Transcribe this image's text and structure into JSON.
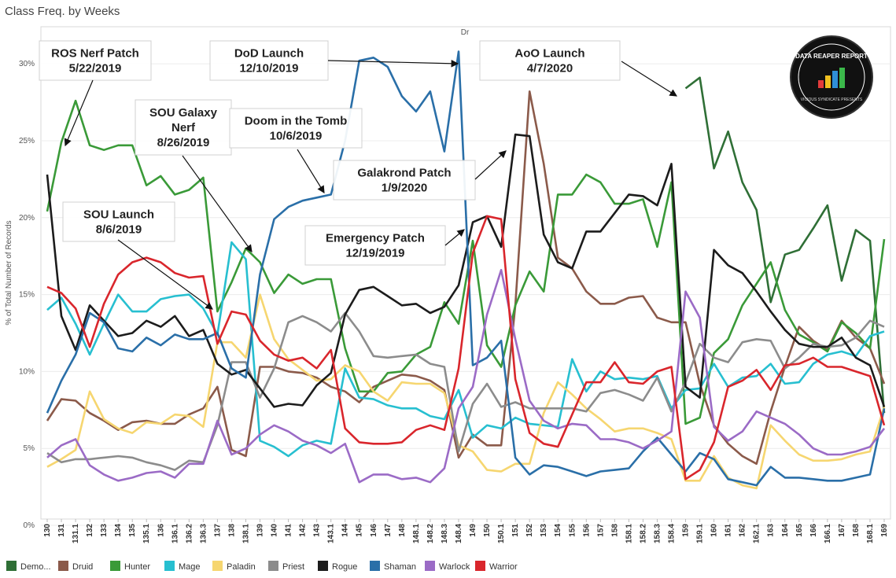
{
  "header": {
    "title": "Class Freq. by Weeks"
  },
  "chart_data": {
    "type": "line",
    "column_header": "Dr",
    "ylabel": "% of Total Number of Records",
    "ylim": [
      0,
      32
    ],
    "yticks": [
      0,
      5,
      10,
      15,
      20,
      25,
      30
    ],
    "ytick_labels": [
      "0%",
      "5%",
      "10%",
      "15%",
      "20%",
      "25%",
      "30%"
    ],
    "grid": true,
    "legend_position": "bottom",
    "categories": [
      "130",
      "131",
      "131.1",
      "132",
      "133",
      "134",
      "135",
      "135.1",
      "136",
      "136.1",
      "136.2",
      "136.3",
      "137",
      "138",
      "138.1",
      "139",
      "140",
      "141",
      "142",
      "143",
      "143.1",
      "144",
      "145",
      "146",
      "147",
      "148",
      "148.1",
      "148.2",
      "148.3",
      "148.4",
      "149",
      "150",
      "150.1",
      "151",
      "152",
      "153",
      "154",
      "155",
      "156",
      "157",
      "158",
      "158.1",
      "158.2",
      "158.3",
      "158.4",
      "159",
      "159.1",
      "160",
      "161",
      "162",
      "162.1",
      "163",
      "164",
      "165",
      "166",
      "166.1",
      "167",
      "168",
      "168.1",
      "169"
    ],
    "series": [
      {
        "name": "Demo...",
        "color": "#2f6f36",
        "values": [
          null,
          null,
          null,
          null,
          null,
          null,
          null,
          null,
          null,
          null,
          null,
          null,
          null,
          null,
          null,
          null,
          null,
          null,
          null,
          null,
          null,
          null,
          null,
          null,
          null,
          null,
          null,
          null,
          null,
          null,
          null,
          null,
          null,
          null,
          null,
          null,
          null,
          null,
          null,
          null,
          null,
          null,
          null,
          null,
          null,
          28.4,
          29.1,
          23.2,
          25.6,
          22.3,
          20.5,
          14.5,
          17.6,
          17.9,
          19.3,
          20.8,
          15.9,
          19.2,
          18.5,
          7.3
        ]
      },
      {
        "name": "Druid",
        "color": "#8b5a4a",
        "values": [
          6.8,
          8.2,
          8.1,
          7.3,
          6.8,
          6.2,
          6.7,
          6.8,
          6.6,
          6.6,
          7.2,
          7.6,
          9.0,
          4.9,
          4.5,
          10.3,
          10.3,
          10.0,
          9.9,
          9.6,
          9.0,
          8.7,
          8.0,
          9.0,
          9.4,
          9.8,
          9.7,
          9.4,
          8.8,
          4.4,
          5.9,
          5.2,
          5.2,
          14.3,
          28.2,
          23.5,
          17.4,
          16.7,
          15.2,
          14.4,
          14.4,
          14.8,
          14.9,
          13.5,
          13.2,
          13.2,
          9.2,
          6.5,
          5.3,
          4.5,
          4.0,
          7.4,
          10.3,
          12.9,
          12.0,
          11.4,
          13.3,
          12.2,
          11.5,
          9.2
        ]
      },
      {
        "name": "Hunter",
        "color": "#3a9a38",
        "values": [
          20.4,
          24.9,
          27.6,
          24.7,
          24.4,
          24.7,
          24.7,
          22.1,
          22.7,
          21.5,
          21.8,
          22.6,
          13.9,
          15.8,
          18.0,
          17.1,
          15.1,
          16.3,
          15.7,
          16.0,
          16.0,
          11.5,
          8.7,
          8.7,
          9.9,
          10.0,
          11.1,
          11.6,
          14.5,
          13.1,
          18.5,
          11.7,
          10.3,
          14.3,
          16.5,
          15.2,
          21.5,
          21.5,
          22.8,
          22.3,
          20.9,
          20.9,
          21.2,
          18.1,
          22.3,
          6.6,
          7.0,
          11.2,
          12.1,
          14.3,
          15.7,
          17.1,
          14.0,
          12.4,
          11.9,
          11.3,
          13.2,
          12.5,
          11.5,
          18.6
        ]
      },
      {
        "name": "Mage",
        "color": "#27bfd0",
        "values": [
          14.0,
          14.8,
          13.1,
          11.1,
          13.1,
          15.0,
          13.9,
          13.9,
          14.7,
          14.9,
          15.0,
          14.1,
          12.4,
          18.4,
          17.3,
          5.5,
          5.1,
          4.5,
          5.2,
          5.5,
          5.3,
          10.2,
          8.3,
          8.2,
          7.8,
          7.6,
          7.6,
          7.1,
          6.9,
          8.8,
          5.7,
          6.5,
          6.3,
          7.0,
          6.6,
          6.5,
          6.4,
          10.8,
          8.7,
          10.0,
          9.5,
          9.6,
          9.5,
          9.7,
          7.6,
          8.8,
          8.9,
          10.5,
          9.0,
          9.6,
          9.7,
          10.5,
          9.2,
          9.3,
          10.5,
          11.1,
          11.3,
          11.0,
          12.3,
          12.6
        ]
      },
      {
        "name": "Paladin",
        "color": "#f6d670",
        "values": [
          3.8,
          4.3,
          4.9,
          8.7,
          6.9,
          6.3,
          6.0,
          6.7,
          6.6,
          7.2,
          7.1,
          6.4,
          11.9,
          11.9,
          10.9,
          15.0,
          12.1,
          10.8,
          10.1,
          9.4,
          9.5,
          10.4,
          10.0,
          8.7,
          8.1,
          9.3,
          9.2,
          9.2,
          8.6,
          5.2,
          4.8,
          3.6,
          3.5,
          4.0,
          4.0,
          7.3,
          9.3,
          8.5,
          7.6,
          6.9,
          6.1,
          6.3,
          6.3,
          6.0,
          5.6,
          2.9,
          2.9,
          4.5,
          3.1,
          2.6,
          2.4,
          6.5,
          5.5,
          4.6,
          4.2,
          4.2,
          4.3,
          4.6,
          4.8,
          7.7
        ]
      },
      {
        "name": "Priest",
        "color": "#8c8c8c",
        "values": [
          4.7,
          4.1,
          4.3,
          4.3,
          4.4,
          4.5,
          4.4,
          4.1,
          3.9,
          3.6,
          4.2,
          4.1,
          6.5,
          10.6,
          10.6,
          8.3,
          10.2,
          13.2,
          13.6,
          13.2,
          12.6,
          13.8,
          12.6,
          11.0,
          10.9,
          11.0,
          11.1,
          10.5,
          10.3,
          4.8,
          7.9,
          9.2,
          7.7,
          8.0,
          7.6,
          7.6,
          7.6,
          7.6,
          7.4,
          8.6,
          8.8,
          8.5,
          8.1,
          9.6,
          7.4,
          9.3,
          11.8,
          10.9,
          10.6,
          11.9,
          12.1,
          12.0,
          10.2,
          10.9,
          11.8,
          11.6,
          11.7,
          12.2,
          13.3,
          12.9
        ]
      },
      {
        "name": "Rogue",
        "color": "#1c1c1c",
        "values": [
          22.8,
          13.6,
          11.4,
          14.3,
          13.3,
          12.3,
          12.5,
          13.3,
          12.9,
          13.6,
          12.3,
          12.7,
          10.5,
          9.8,
          10.1,
          8.9,
          7.7,
          7.9,
          7.8,
          9.1,
          9.9,
          13.7,
          15.3,
          15.5,
          14.9,
          14.3,
          14.4,
          13.8,
          14.2,
          15.6,
          19.7,
          20.1,
          18.1,
          25.4,
          25.3,
          18.9,
          17.1,
          16.7,
          19.1,
          19.1,
          20.3,
          21.5,
          21.4,
          20.8,
          23.5,
          9.0,
          8.3,
          17.9,
          16.9,
          16.4,
          15.2,
          13.9,
          12.7,
          11.8,
          11.6,
          11.6,
          12.2,
          10.9,
          10.4,
          7.7
        ]
      },
      {
        "name": "Shaman",
        "color": "#2a6fa8",
        "values": [
          7.3,
          9.4,
          11.1,
          13.8,
          13.2,
          11.5,
          11.3,
          12.2,
          11.7,
          12.4,
          12.1,
          12.1,
          12.5,
          10.2,
          9.6,
          16.3,
          19.9,
          20.7,
          21.1,
          21.3,
          21.5,
          25.0,
          30.2,
          30.4,
          29.8,
          27.9,
          26.9,
          28.2,
          24.3,
          30.8,
          10.4,
          10.9,
          12.0,
          4.4,
          3.3,
          3.9,
          3.8,
          3.5,
          3.2,
          3.5,
          3.6,
          3.7,
          4.8,
          5.7,
          4.6,
          3.5,
          4.7,
          4.3,
          3.0,
          2.8,
          2.6,
          3.8,
          3.1,
          3.1,
          3.0,
          2.9,
          2.9,
          3.1,
          3.3,
          7.6
        ]
      },
      {
        "name": "Warlock",
        "color": "#9b6bc6",
        "values": [
          4.4,
          5.2,
          5.6,
          3.9,
          3.3,
          2.9,
          3.1,
          3.4,
          3.5,
          3.1,
          4.0,
          4.0,
          6.8,
          4.6,
          5.0,
          5.9,
          6.5,
          6.1,
          5.5,
          5.2,
          4.7,
          5.3,
          2.8,
          3.3,
          3.3,
          3.0,
          3.1,
          2.8,
          3.7,
          7.6,
          9.0,
          13.7,
          16.6,
          12.1,
          8.1,
          6.8,
          6.3,
          6.6,
          6.5,
          5.6,
          5.6,
          5.4,
          5.0,
          5.5,
          6.1,
          15.2,
          13.5,
          6.4,
          5.5,
          6.1,
          7.4,
          7.0,
          6.6,
          5.9,
          5.0,
          4.6,
          4.6,
          4.8,
          5.1,
          6.3
        ]
      },
      {
        "name": "Warrior",
        "color": "#d9262c",
        "values": [
          15.5,
          15.1,
          14.1,
          11.6,
          14.4,
          16.3,
          17.1,
          17.4,
          17.1,
          16.4,
          16.1,
          16.2,
          11.8,
          13.9,
          13.7,
          12.0,
          11.1,
          10.7,
          10.9,
          10.2,
          11.4,
          6.3,
          5.4,
          5.3,
          5.3,
          5.4,
          6.2,
          6.5,
          6.2,
          10.2,
          17.7,
          20.1,
          19.9,
          9.5,
          6.0,
          5.3,
          5.1,
          7.2,
          9.3,
          9.3,
          10.6,
          9.3,
          9.2,
          10.0,
          10.3,
          3.0,
          3.6,
          5.4,
          9.0,
          9.4,
          10.1,
          8.8,
          10.4,
          10.5,
          10.9,
          10.3,
          10.3,
          10.0,
          9.7,
          6.5
        ]
      }
    ],
    "annotations": [
      {
        "id": "ros-nerf",
        "lines": [
          "ROS Nerf Patch",
          "5/22/2019"
        ]
      },
      {
        "id": "dod",
        "lines": [
          "DoD Launch",
          "12/10/2019"
        ]
      },
      {
        "id": "aoo",
        "lines": [
          "AoO Launch",
          "4/7/2020"
        ]
      },
      {
        "id": "sou-galaxy",
        "lines": [
          "SOU Galaxy",
          "Nerf",
          "8/26/2019"
        ]
      },
      {
        "id": "doom",
        "lines": [
          "Doom in the Tomb",
          "10/6/2019"
        ]
      },
      {
        "id": "galakrond",
        "lines": [
          "Galakrond Patch",
          "1/9/2020"
        ]
      },
      {
        "id": "sou-launch",
        "lines": [
          "SOU Launch",
          "8/6/2019"
        ]
      },
      {
        "id": "emergency",
        "lines": [
          "Emergency Patch",
          "12/19/2019"
        ]
      }
    ]
  },
  "logo": {
    "text": "DATA REAPER REPORT",
    "subtext": "VICIOUS SYNDICATE PRESENTS"
  }
}
